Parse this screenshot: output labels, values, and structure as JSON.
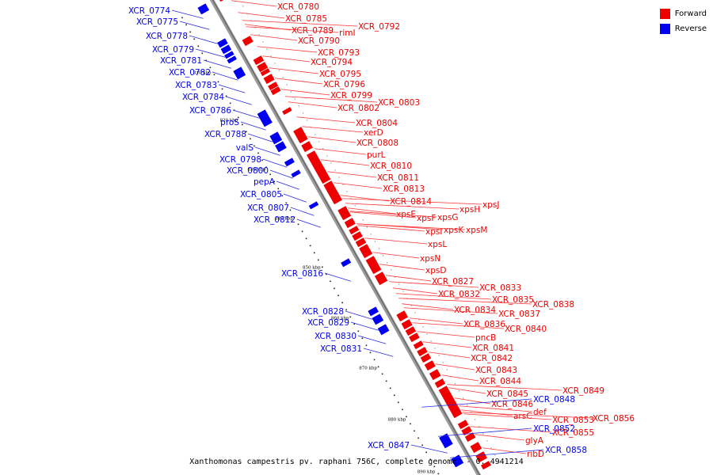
{
  "legend": {
    "forward": {
      "label": "Forward",
      "color": "#ee0000"
    },
    "reverse": {
      "label": "Reverse",
      "color": "#0000ee"
    }
  },
  "caption": "Xanthomonas campestris pv. raphani 756C, complete genome. - 0..4941214",
  "ticks": [
    "810 kbp",
    "820 kbp",
    "830 kbp",
    "840 kbp",
    "850 kbp",
    "860 kbp",
    "870 kbp",
    "880 kbp",
    "890 kbp"
  ],
  "forward_labels": [
    "XCR_0780",
    "XCR_0785",
    "XCR_0789",
    "rimI",
    "XCR_0792",
    "XCR_0790",
    "XCR_0793",
    "XCR_0794",
    "XCR_0795",
    "XCR_0796",
    "XCR_0799",
    "XCR_0803",
    "XCR_0802",
    "XCR_0804",
    "xerD",
    "XCR_0808",
    "purL",
    "XCR_0810",
    "XCR_0811",
    "XCR_0813",
    "XCR_0814",
    "xpsJ",
    "xpsH",
    "xpsE",
    "xpsF",
    "xpsG",
    "xpsI",
    "xpsK",
    "xpsM",
    "xpsL",
    "xpsN",
    "xpsD",
    "XCR_0827",
    "XCR_0833",
    "XCR_0832",
    "XCR_0835",
    "XCR_0838",
    "XCR_0834",
    "XCR_0837",
    "XCR_0836",
    "XCR_0840",
    "pncB",
    "XCR_0841",
    "XCR_0842",
    "XCR_0843",
    "XCR_0844",
    "XCR_0849",
    "XCR_0845",
    "XCR_0846",
    "def",
    "arsC",
    "XCR_0853",
    "XCR_0856",
    "XCR_0855",
    "glyA",
    "ribD"
  ],
  "reverse_labels": [
    "XCR_0774",
    "XCR_0775",
    "XCR_0778",
    "XCR_0779",
    "XCR_0781",
    "XCR_0782",
    "XCR_0783",
    "XCR_0784",
    "XCR_0786",
    "proS",
    "XCR_0788",
    "valS",
    "XCR_0798",
    "XCR_0800",
    "pepA",
    "XCR_0805",
    "XCR_0807",
    "XCR_0812",
    "XCR_0816",
    "XCR_0828",
    "XCR_0829",
    "XCR_0830",
    "XCR_0831",
    "XCR_0848",
    "XCR_0852",
    "XCR_0847",
    "XCR_0858"
  ]
}
